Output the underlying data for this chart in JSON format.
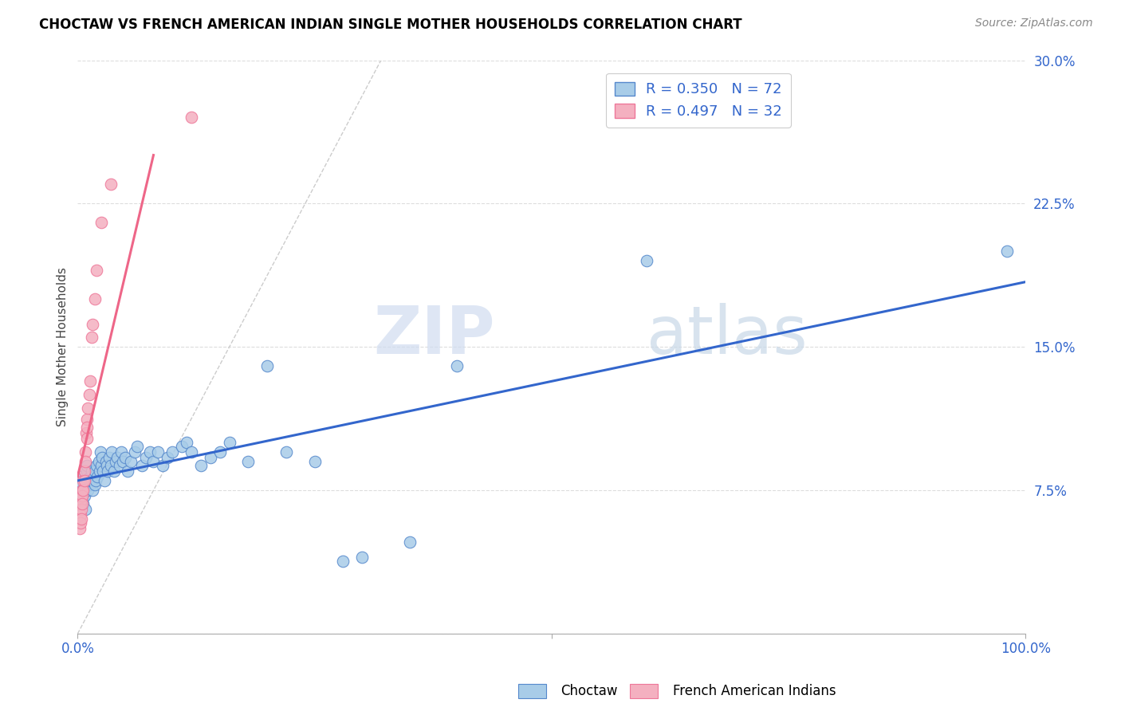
{
  "title": "CHOCTAW VS FRENCH AMERICAN INDIAN SINGLE MOTHER HOUSEHOLDS CORRELATION CHART",
  "source": "Source: ZipAtlas.com",
  "ylabel": "Single Mother Households",
  "xlim": [
    0,
    1.0
  ],
  "ylim": [
    0,
    0.3
  ],
  "yticks": [
    0.0,
    0.075,
    0.15,
    0.225,
    0.3
  ],
  "yticklabels": [
    "",
    "7.5%",
    "15.0%",
    "22.5%",
    "30.0%"
  ],
  "xtick_positions": [
    0.0,
    0.5,
    1.0
  ],
  "xticklabels_show": [
    "0.0%",
    "",
    "100.0%"
  ],
  "choctaw_color": "#A8CCE8",
  "french_color": "#F4B0C0",
  "choctaw_edge_color": "#5588CC",
  "french_edge_color": "#EE7799",
  "choctaw_line_color": "#3366CC",
  "french_line_color": "#EE6688",
  "diag_color": "#CCCCCC",
  "watermark_zip_color": "#D0DCF0",
  "watermark_atlas_color": "#C8D8E8",
  "choctaw_x": [
    0.003,
    0.004,
    0.005,
    0.005,
    0.006,
    0.007,
    0.008,
    0.009,
    0.01,
    0.01,
    0.011,
    0.012,
    0.013,
    0.014,
    0.015,
    0.015,
    0.016,
    0.017,
    0.018,
    0.018,
    0.019,
    0.02,
    0.021,
    0.022,
    0.023,
    0.024,
    0.025,
    0.026,
    0.027,
    0.028,
    0.03,
    0.031,
    0.032,
    0.033,
    0.035,
    0.036,
    0.038,
    0.04,
    0.042,
    0.044,
    0.046,
    0.048,
    0.05,
    0.053,
    0.056,
    0.06,
    0.063,
    0.068,
    0.072,
    0.076,
    0.08,
    0.085,
    0.09,
    0.095,
    0.1,
    0.11,
    0.115,
    0.12,
    0.13,
    0.14,
    0.15,
    0.16,
    0.18,
    0.2,
    0.22,
    0.25,
    0.28,
    0.3,
    0.35,
    0.4,
    0.6,
    0.98
  ],
  "choctaw_y": [
    0.082,
    0.078,
    0.075,
    0.07,
    0.068,
    0.072,
    0.065,
    0.08,
    0.085,
    0.088,
    0.075,
    0.08,
    0.082,
    0.078,
    0.085,
    0.08,
    0.075,
    0.082,
    0.085,
    0.078,
    0.08,
    0.088,
    0.082,
    0.09,
    0.085,
    0.095,
    0.088,
    0.092,
    0.085,
    0.08,
    0.09,
    0.088,
    0.085,
    0.092,
    0.088,
    0.095,
    0.085,
    0.09,
    0.092,
    0.088,
    0.095,
    0.09,
    0.092,
    0.085,
    0.09,
    0.095,
    0.098,
    0.088,
    0.092,
    0.095,
    0.09,
    0.095,
    0.088,
    0.092,
    0.095,
    0.098,
    0.1,
    0.095,
    0.088,
    0.092,
    0.095,
    0.1,
    0.09,
    0.14,
    0.095,
    0.09,
    0.038,
    0.04,
    0.048,
    0.14,
    0.195,
    0.2
  ],
  "french_x": [
    0.001,
    0.002,
    0.002,
    0.003,
    0.003,
    0.003,
    0.004,
    0.004,
    0.004,
    0.005,
    0.005,
    0.005,
    0.006,
    0.006,
    0.007,
    0.007,
    0.008,
    0.008,
    0.009,
    0.01,
    0.01,
    0.01,
    0.011,
    0.012,
    0.013,
    0.015,
    0.016,
    0.018,
    0.02,
    0.025,
    0.035,
    0.12
  ],
  "french_y": [
    0.065,
    0.06,
    0.055,
    0.068,
    0.062,
    0.058,
    0.07,
    0.065,
    0.06,
    0.075,
    0.072,
    0.068,
    0.08,
    0.075,
    0.085,
    0.08,
    0.095,
    0.09,
    0.105,
    0.112,
    0.108,
    0.102,
    0.118,
    0.125,
    0.132,
    0.155,
    0.162,
    0.175,
    0.19,
    0.215,
    0.235,
    0.27
  ],
  "french_trend_x": [
    0.0,
    0.08
  ],
  "choctaw_trend_x": [
    0.0,
    1.0
  ]
}
